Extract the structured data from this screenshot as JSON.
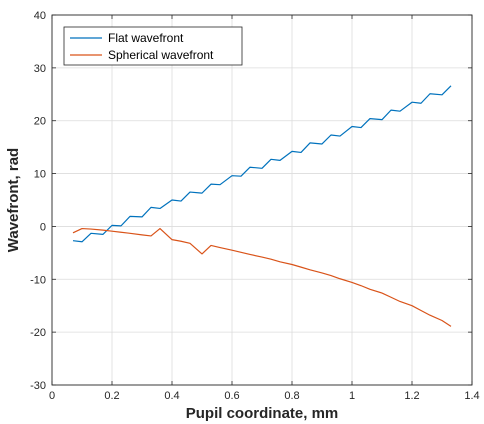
{
  "chart_data": {
    "type": "line",
    "title": "",
    "xlabel": "Pupil coordinate, mm",
    "ylabel": "Wavefront, rad",
    "xlim": [
      0,
      1.4
    ],
    "ylim": [
      -30,
      40
    ],
    "xticks": [
      0,
      0.2,
      0.4,
      0.6,
      0.8,
      1,
      1.2,
      1.4
    ],
    "xtick_labels": [
      "0",
      "0.2",
      "0.4",
      "0.6",
      "0.8",
      "1",
      "1.2",
      "1.4"
    ],
    "yticks": [
      -30,
      -20,
      -10,
      0,
      10,
      20,
      30,
      40
    ],
    "ytick_labels": [
      "-30",
      "-20",
      "-10",
      "0",
      "10",
      "20",
      "30",
      "40"
    ],
    "grid": true,
    "legend_position": "top-left",
    "series": [
      {
        "name": "Flat wavefront",
        "color": "#0072BD",
        "x": [
          0.07,
          0.1,
          0.13,
          0.17,
          0.2,
          0.23,
          0.26,
          0.3,
          0.33,
          0.36,
          0.4,
          0.43,
          0.46,
          0.5,
          0.53,
          0.56,
          0.6,
          0.63,
          0.66,
          0.7,
          0.73,
          0.76,
          0.8,
          0.83,
          0.86,
          0.9,
          0.93,
          0.96,
          1.0,
          1.03,
          1.06,
          1.1,
          1.13,
          1.16,
          1.2,
          1.23,
          1.26,
          1.3,
          1.33
        ],
        "y": [
          -2.7,
          -2.9,
          -1.3,
          -1.5,
          0.2,
          0.1,
          1.9,
          1.8,
          3.6,
          3.4,
          5.0,
          4.8,
          6.5,
          6.3,
          8.0,
          7.9,
          9.6,
          9.5,
          11.2,
          11.0,
          12.7,
          12.5,
          14.2,
          14.0,
          15.8,
          15.6,
          17.3,
          17.1,
          18.9,
          18.7,
          20.4,
          20.2,
          22.0,
          21.8,
          23.5,
          23.3,
          25.1,
          24.9,
          26.6
        ]
      },
      {
        "name": "Spherical wavefront",
        "color": "#D95319",
        "x": [
          0.07,
          0.1,
          0.13,
          0.17,
          0.2,
          0.23,
          0.26,
          0.3,
          0.33,
          0.36,
          0.4,
          0.43,
          0.46,
          0.5,
          0.53,
          0.56,
          0.6,
          0.63,
          0.66,
          0.7,
          0.73,
          0.76,
          0.8,
          0.83,
          0.86,
          0.9,
          0.93,
          0.96,
          1.0,
          1.03,
          1.06,
          1.1,
          1.13,
          1.16,
          1.2,
          1.23,
          1.26,
          1.3,
          1.33
        ],
        "y": [
          -1.2,
          -0.4,
          -0.5,
          -0.7,
          -0.9,
          -1.1,
          -1.3,
          -1.6,
          -1.8,
          -0.4,
          -2.5,
          -2.8,
          -3.2,
          -5.2,
          -3.6,
          -4.0,
          -4.5,
          -4.9,
          -5.3,
          -5.8,
          -6.2,
          -6.7,
          -7.2,
          -7.7,
          -8.2,
          -8.8,
          -9.3,
          -9.9,
          -10.6,
          -11.2,
          -11.9,
          -12.6,
          -13.4,
          -14.2,
          -15.0,
          -15.9,
          -16.8,
          -17.8,
          -18.9
        ]
      }
    ]
  }
}
